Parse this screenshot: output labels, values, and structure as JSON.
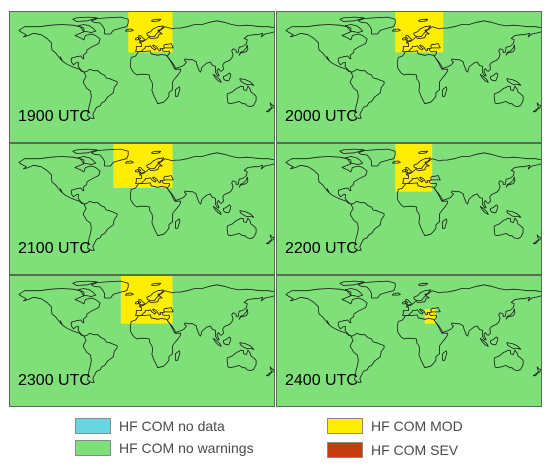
{
  "panels": [
    {
      "label": "1900 UTC",
      "regions": [
        {
          "lon": [
            -20,
            40
          ],
          "lat": [
            35,
            90
          ],
          "severity": "mod"
        }
      ]
    },
    {
      "label": "2000 UTC",
      "regions": [
        {
          "lon": [
            -20,
            45
          ],
          "lat": [
            35,
            90
          ],
          "severity": "mod"
        }
      ]
    },
    {
      "label": "2100 UTC",
      "regions": [
        {
          "lon": [
            -40,
            40
          ],
          "lat": [
            30,
            90
          ],
          "severity": "mod"
        }
      ]
    },
    {
      "label": "2200 UTC",
      "regions": [
        {
          "lon": [
            -20,
            30
          ],
          "lat": [
            25,
            90
          ],
          "severity": "mod"
        }
      ]
    },
    {
      "label": "2300 UTC",
      "regions": [
        {
          "lon": [
            -30,
            40
          ],
          "lat": [
            25,
            90
          ],
          "severity": "mod"
        }
      ]
    },
    {
      "label": "2400 UTC",
      "regions": [
        {
          "lon": [
            20,
            35
          ],
          "lat": [
            25,
            45
          ],
          "severity": "mod"
        }
      ]
    }
  ],
  "legend": [
    {
      "key": "nodata",
      "label": "HF COM no data",
      "color": "#66d6e0"
    },
    {
      "key": "mod",
      "label": "HF COM MOD",
      "color": "#ffee00"
    },
    {
      "key": "nowarn",
      "label": "HF COM no warnings",
      "color": "#7fe07a"
    },
    {
      "key": "sev",
      "label": "HF COM SEV",
      "color": "#c83a10"
    }
  ]
}
